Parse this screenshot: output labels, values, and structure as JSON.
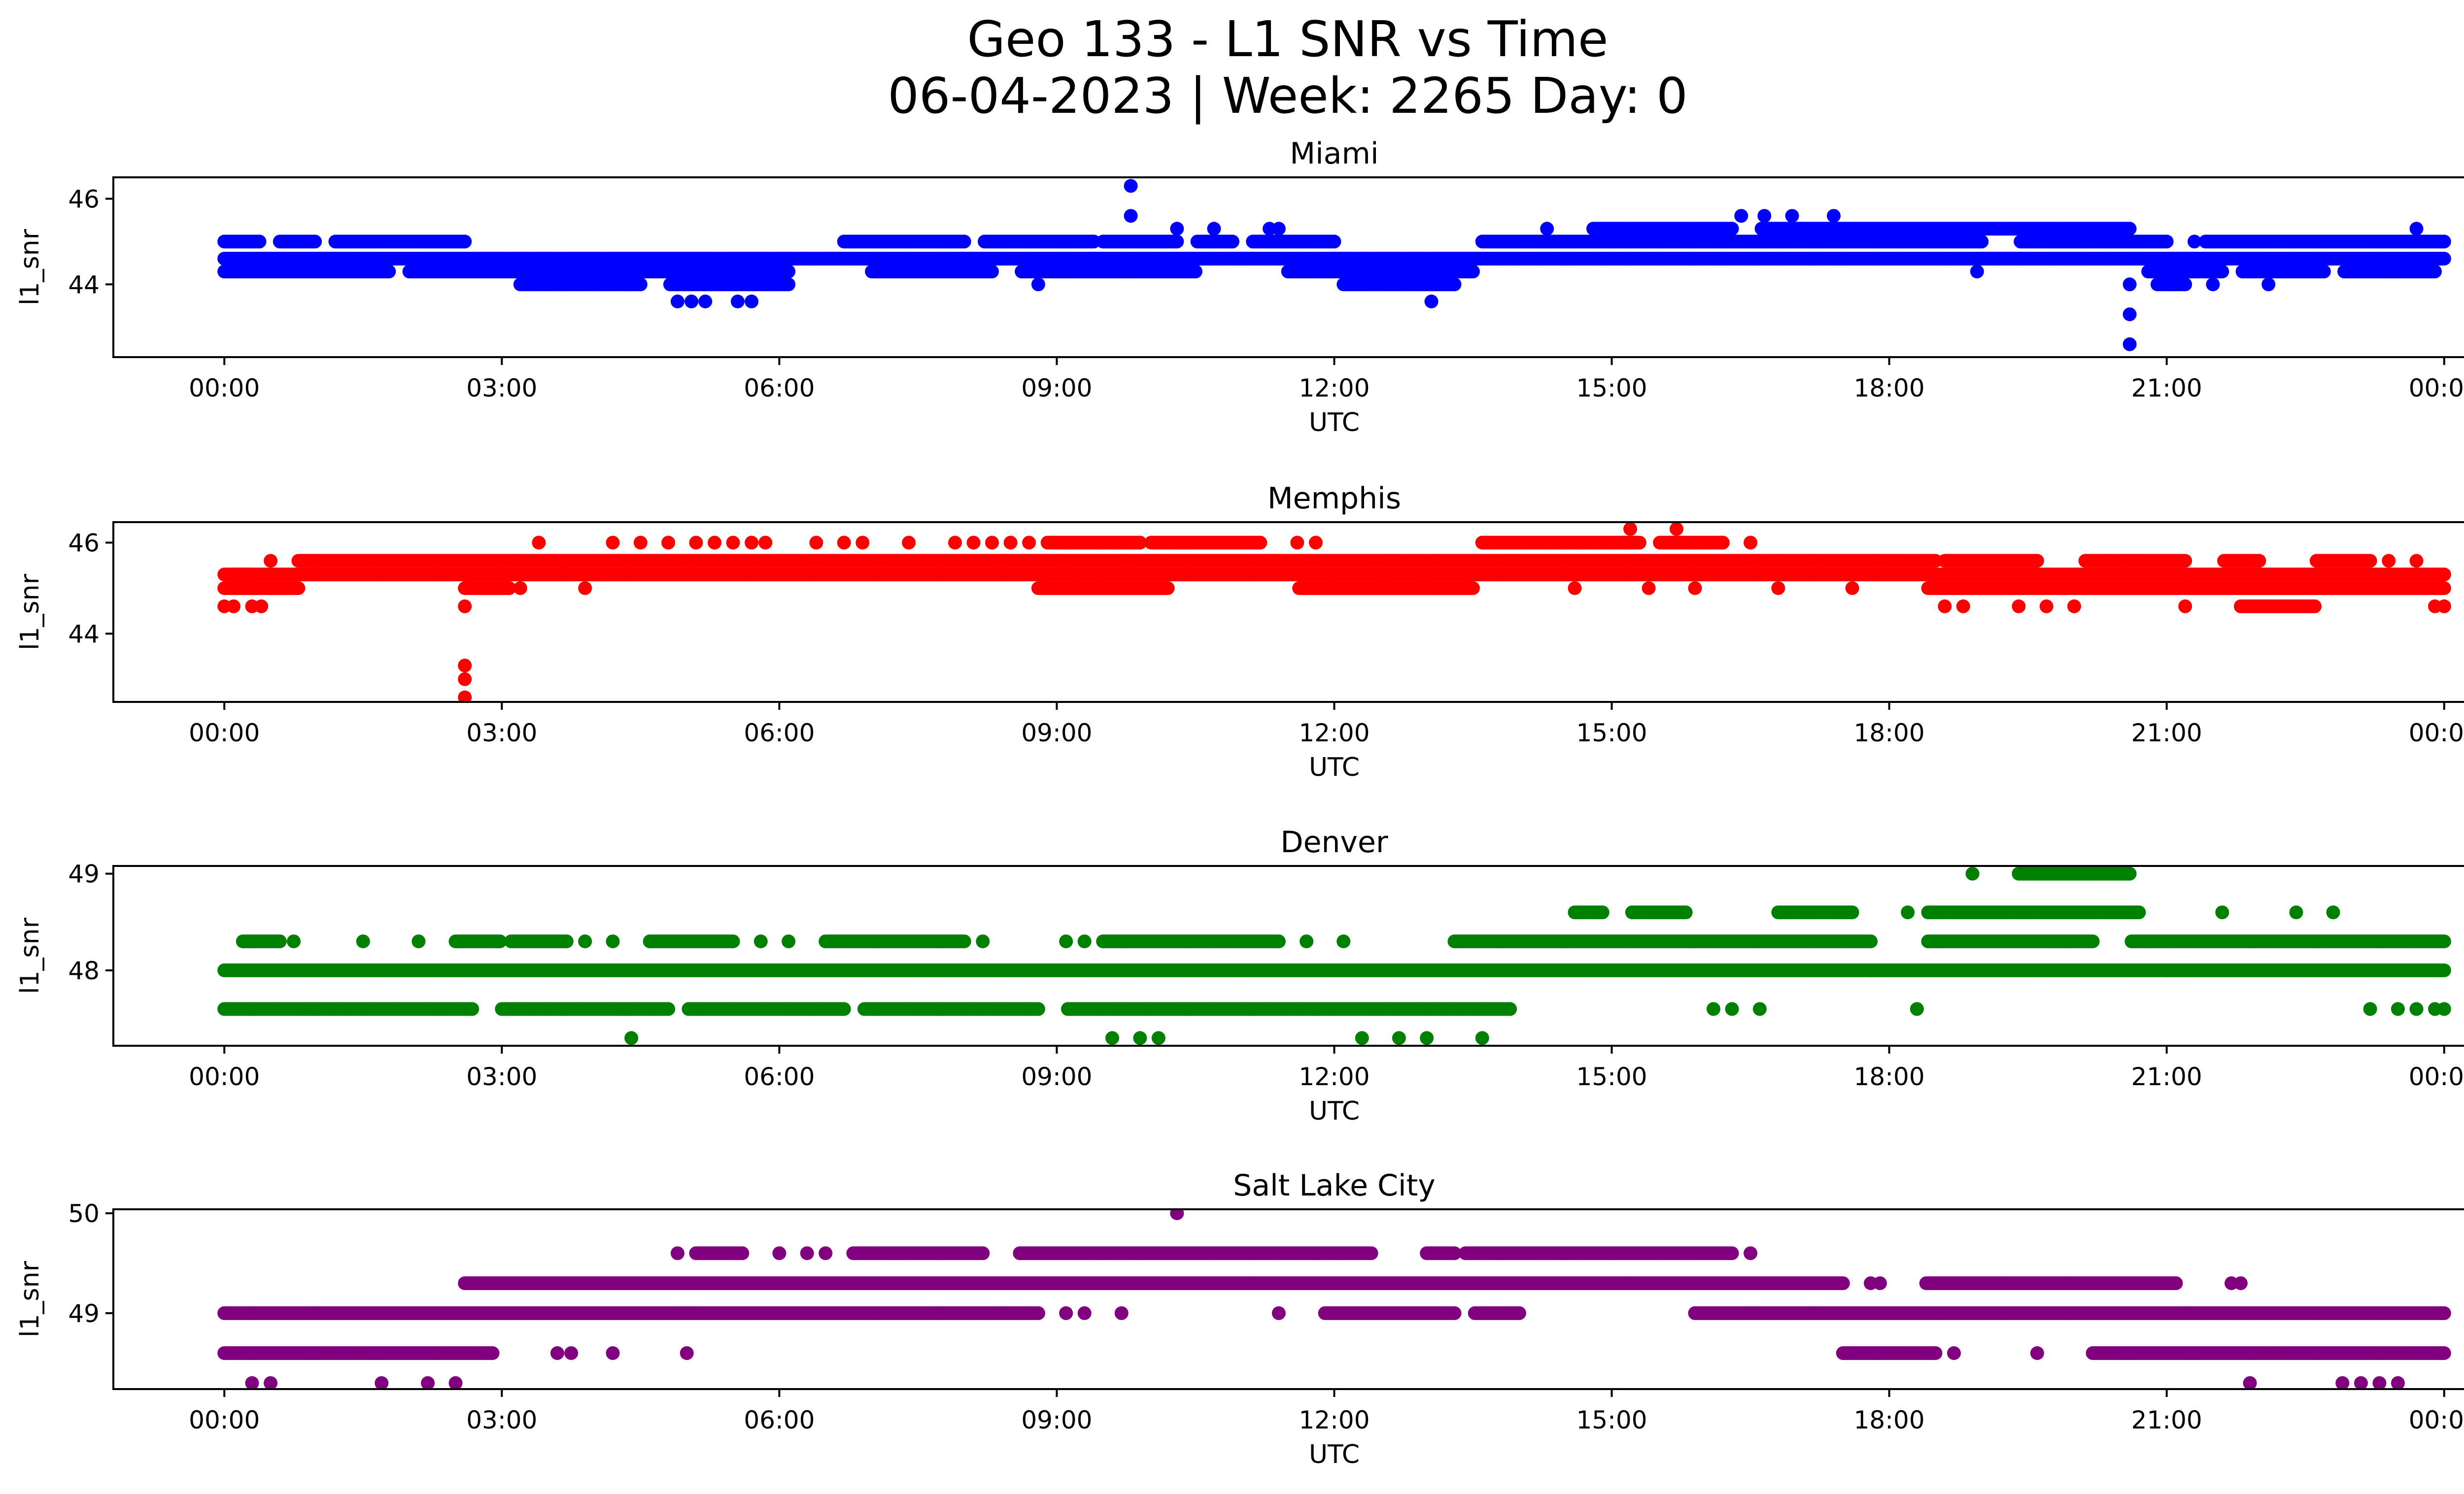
{
  "figure": {
    "title_line1": "Geo 133 - L1 SNR vs Time",
    "title_line2": "06-04-2023 | Week: 2265 Day: 0"
  },
  "chart_data": [
    {
      "type": "scatter",
      "title": "Miami",
      "color": "#0000ff",
      "xlabel": "UTC",
      "ylabel": "l1_snr",
      "x_unit": "hours UTC",
      "xlim": [
        -1.2,
        25.2
      ],
      "x_ticks": [
        0,
        3,
        6,
        9,
        12,
        15,
        18,
        21,
        24
      ],
      "x_tick_labels": [
        "00:00",
        "03:00",
        "06:00",
        "09:00",
        "12:00",
        "15:00",
        "18:00",
        "21:00",
        "00:00"
      ],
      "ylim": [
        42.3,
        46.5
      ],
      "y_ticks": [
        44,
        46
      ],
      "y_tick_labels": [
        "44",
        "46"
      ],
      "grid": false,
      "levels": [
        44.0,
        44.3,
        44.6,
        45.0,
        45.3,
        45.6
      ],
      "bands": [
        {
          "y": 44.6,
          "x0": 0.0,
          "x1": 24.0,
          "gaps": []
        },
        {
          "y": 45.0,
          "x0": 0.0,
          "x1": 2.6,
          "gaps": [
            [
              0.4,
              0.6
            ],
            [
              1.0,
              1.2
            ]
          ]
        },
        {
          "y": 44.3,
          "x0": 0.0,
          "x1": 6.1,
          "gaps": [
            [
              1.8,
              2.0
            ]
          ]
        },
        {
          "y": 44.0,
          "x0": 3.2,
          "x1": 6.1,
          "gaps": [
            [
              4.5,
              4.8
            ]
          ]
        },
        {
          "y": 45.0,
          "x0": 6.7,
          "x1": 9.4,
          "gaps": [
            [
              8.0,
              8.2
            ]
          ]
        },
        {
          "y": 44.3,
          "x0": 7.0,
          "x1": 10.5,
          "gaps": [
            [
              8.3,
              8.6
            ]
          ]
        },
        {
          "y": 45.0,
          "x0": 9.5,
          "x1": 12.0,
          "gaps": [
            [
              10.3,
              10.5
            ],
            [
              10.9,
              11.1
            ]
          ]
        },
        {
          "y": 44.3,
          "x0": 11.5,
          "x1": 13.5,
          "gaps": []
        },
        {
          "y": 44.0,
          "x0": 12.1,
          "x1": 13.3,
          "gaps": []
        },
        {
          "y": 45.0,
          "x0": 13.6,
          "x1": 24.0,
          "gaps": [
            [
              19.0,
              19.4
            ],
            [
              21.0,
              21.4
            ]
          ]
        },
        {
          "y": 45.3,
          "x0": 14.8,
          "x1": 20.6,
          "gaps": [
            [
              16.3,
              16.6
            ]
          ]
        },
        {
          "y": 44.3,
          "x0": 20.8,
          "x1": 23.9,
          "gaps": [
            [
              21.6,
              21.8
            ],
            [
              22.7,
              22.9
            ]
          ]
        },
        {
          "y": 44.0,
          "x0": 20.9,
          "x1": 21.2,
          "gaps": []
        }
      ],
      "points": [
        [
          4.9,
          43.6
        ],
        [
          5.05,
          43.6
        ],
        [
          5.2,
          43.6
        ],
        [
          5.55,
          43.6
        ],
        [
          5.7,
          43.6
        ],
        [
          13.05,
          43.6
        ],
        [
          8.8,
          44.0
        ],
        [
          18.95,
          44.3
        ],
        [
          21.5,
          44.0
        ],
        [
          22.1,
          44.0
        ],
        [
          9.8,
          46.3
        ],
        [
          9.8,
          45.6
        ],
        [
          10.3,
          45.3
        ],
        [
          10.7,
          45.3
        ],
        [
          11.3,
          45.3
        ],
        [
          11.4,
          45.3
        ],
        [
          14.3,
          45.3
        ],
        [
          16.4,
          45.6
        ],
        [
          16.65,
          45.6
        ],
        [
          16.95,
          45.6
        ],
        [
          17.4,
          45.6
        ],
        [
          20.6,
          44.0
        ],
        [
          20.6,
          43.3
        ],
        [
          20.6,
          42.6
        ],
        [
          23.7,
          45.3
        ],
        [
          21.3,
          45.0
        ],
        [
          9.9,
          44.6
        ]
      ]
    },
    {
      "type": "scatter",
      "title": "Memphis",
      "color": "#ff0000",
      "xlabel": "UTC",
      "ylabel": "l1_snr",
      "x_unit": "hours UTC",
      "xlim": [
        -1.2,
        25.2
      ],
      "x_ticks": [
        0,
        3,
        6,
        9,
        12,
        15,
        18,
        21,
        24
      ],
      "x_tick_labels": [
        "00:00",
        "03:00",
        "06:00",
        "09:00",
        "12:00",
        "15:00",
        "18:00",
        "21:00",
        "00:00"
      ],
      "ylim": [
        42.5,
        46.45
      ],
      "y_ticks": [
        44,
        46
      ],
      "y_tick_labels": [
        "44",
        "46"
      ],
      "grid": false,
      "levels": [
        44.6,
        45.0,
        45.3,
        45.6,
        46.0
      ],
      "bands": [
        {
          "y": 45.3,
          "x0": 0.0,
          "x1": 24.0,
          "gaps": []
        },
        {
          "y": 45.0,
          "x0": 0.0,
          "x1": 0.8,
          "gaps": []
        },
        {
          "y": 45.6,
          "x0": 0.8,
          "x1": 18.5,
          "gaps": []
        },
        {
          "y": 45.0,
          "x0": 2.6,
          "x1": 24.0,
          "gaps": [
            [
              3.1,
              8.8
            ],
            [
              10.2,
              11.6
            ],
            [
              13.5,
              18.4
            ]
          ]
        },
        {
          "y": 46.0,
          "x0": 8.9,
          "x1": 11.2,
          "gaps": [
            [
              9.9,
              10.0
            ]
          ]
        },
        {
          "y": 46.0,
          "x0": 13.6,
          "x1": 16.2,
          "gaps": [
            [
              15.3,
              15.5
            ]
          ]
        },
        {
          "y": 45.6,
          "x0": 18.6,
          "x1": 23.2,
          "gaps": [
            [
              19.6,
              20.1
            ],
            [
              21.2,
              21.6
            ],
            [
              22.0,
              22.6
            ]
          ]
        },
        {
          "y": 44.6,
          "x0": 21.8,
          "x1": 22.6,
          "gaps": []
        },
        {
          "y": 45.3,
          "x0": 0.1,
          "x1": 0.3,
          "gaps": []
        }
      ],
      "points": [
        [
          0.0,
          44.6
        ],
        [
          0.1,
          44.6
        ],
        [
          0.3,
          44.6
        ],
        [
          0.4,
          44.6
        ],
        [
          0.5,
          45.6
        ],
        [
          2.6,
          44.6
        ],
        [
          2.6,
          43.3
        ],
        [
          2.6,
          43.0
        ],
        [
          2.6,
          42.6
        ],
        [
          3.4,
          46.0
        ],
        [
          3.9,
          45.0
        ],
        [
          3.2,
          45.0
        ],
        [
          4.2,
          46.0
        ],
        [
          4.5,
          46.0
        ],
        [
          4.8,
          46.0
        ],
        [
          5.1,
          46.0
        ],
        [
          5.3,
          46.0
        ],
        [
          5.5,
          46.0
        ],
        [
          5.7,
          46.0
        ],
        [
          5.85,
          46.0
        ],
        [
          6.4,
          46.0
        ],
        [
          6.7,
          46.0
        ],
        [
          6.9,
          46.0
        ],
        [
          7.4,
          46.0
        ],
        [
          7.9,
          46.0
        ],
        [
          8.1,
          46.0
        ],
        [
          8.3,
          46.0
        ],
        [
          8.5,
          46.0
        ],
        [
          8.7,
          46.0
        ],
        [
          8.8,
          45.0
        ],
        [
          9.2,
          45.0
        ],
        [
          9.5,
          45.0
        ],
        [
          12.6,
          45.0
        ],
        [
          13.0,
          45.0
        ],
        [
          11.6,
          46.0
        ],
        [
          12.0,
          45.0
        ],
        [
          15.2,
          46.3
        ],
        [
          15.7,
          46.3
        ],
        [
          16.2,
          46.0
        ],
        [
          16.5,
          46.0
        ],
        [
          15.4,
          45.0
        ],
        [
          15.9,
          45.0
        ],
        [
          14.6,
          45.0
        ],
        [
          16.8,
          45.0
        ],
        [
          17.6,
          45.0
        ],
        [
          18.6,
          44.6
        ],
        [
          18.8,
          44.6
        ],
        [
          19.4,
          44.6
        ],
        [
          19.7,
          44.6
        ],
        [
          20.0,
          44.6
        ],
        [
          21.2,
          44.6
        ],
        [
          23.4,
          45.6
        ],
        [
          23.7,
          45.6
        ],
        [
          23.9,
          44.6
        ],
        [
          24.0,
          44.6
        ],
        [
          11.8,
          46.0
        ]
      ]
    },
    {
      "type": "scatter",
      "title": "Denver",
      "color": "#008000",
      "xlabel": "UTC",
      "ylabel": "l1_snr",
      "x_unit": "hours UTC",
      "xlim": [
        -1.2,
        25.2
      ],
      "x_ticks": [
        0,
        3,
        6,
        9,
        12,
        15,
        18,
        21,
        24
      ],
      "x_tick_labels": [
        "00:00",
        "03:00",
        "06:00",
        "09:00",
        "12:00",
        "15:00",
        "18:00",
        "21:00",
        "00:00"
      ],
      "ylim": [
        47.22,
        49.08
      ],
      "y_ticks": [
        48,
        49
      ],
      "y_tick_labels": [
        "48",
        "49"
      ],
      "grid": false,
      "levels": [
        47.3,
        47.6,
        48.0,
        48.3,
        48.6,
        49.0
      ],
      "bands": [
        {
          "y": 48.0,
          "x0": 0.0,
          "x1": 24.0,
          "gaps": []
        },
        {
          "y": 47.6,
          "x0": 0.0,
          "x1": 13.9,
          "gaps": [
            [
              2.7,
              3.0
            ],
            [
              4.8,
              5.0
            ],
            [
              6.7,
              6.9
            ],
            [
              8.8,
              9.1
            ]
          ]
        },
        {
          "y": 48.3,
          "x0": 0.2,
          "x1": 0.6,
          "gaps": []
        },
        {
          "y": 48.3,
          "x0": 2.5,
          "x1": 3.7,
          "gaps": [
            [
              3.0,
              3.1
            ]
          ]
        },
        {
          "y": 48.3,
          "x0": 4.6,
          "x1": 5.5,
          "gaps": []
        },
        {
          "y": 48.3,
          "x0": 6.5,
          "x1": 8.0,
          "gaps": []
        },
        {
          "y": 48.3,
          "x0": 9.5,
          "x1": 11.4,
          "gaps": []
        },
        {
          "y": 48.3,
          "x0": 13.3,
          "x1": 24.0,
          "gaps": [
            [
              17.8,
              18.4
            ],
            [
              20.2,
              20.6
            ]
          ]
        },
        {
          "y": 48.6,
          "x0": 16.8,
          "x1": 20.7,
          "gaps": [
            [
              17.6,
              18.4
            ]
          ]
        },
        {
          "y": 48.6,
          "x0": 14.6,
          "x1": 15.8,
          "gaps": [
            [
              14.9,
              15.2
            ]
          ]
        },
        {
          "y": 49.0,
          "x0": 19.4,
          "x1": 20.6,
          "gaps": []
        }
      ],
      "points": [
        [
          0.75,
          48.3
        ],
        [
          1.5,
          48.3
        ],
        [
          2.1,
          48.3
        ],
        [
          3.9,
          48.3
        ],
        [
          4.2,
          48.3
        ],
        [
          5.8,
          48.3
        ],
        [
          6.1,
          48.3
        ],
        [
          8.2,
          48.3
        ],
        [
          9.1,
          48.3
        ],
        [
          9.3,
          48.3
        ],
        [
          11.7,
          48.3
        ],
        [
          12.1,
          48.3
        ],
        [
          4.4,
          47.3
        ],
        [
          9.6,
          47.3
        ],
        [
          9.9,
          47.3
        ],
        [
          10.1,
          47.3
        ],
        [
          12.3,
          47.3
        ],
        [
          12.7,
          47.3
        ],
        [
          13.0,
          47.3
        ],
        [
          13.6,
          47.3
        ],
        [
          16.1,
          47.6
        ],
        [
          16.3,
          47.6
        ],
        [
          16.6,
          47.6
        ],
        [
          18.3,
          47.6
        ],
        [
          18.9,
          49.0
        ],
        [
          23.2,
          47.6
        ],
        [
          23.5,
          47.6
        ],
        [
          23.7,
          47.6
        ],
        [
          23.9,
          47.6
        ],
        [
          24.0,
          47.6
        ],
        [
          21.6,
          48.6
        ],
        [
          22.4,
          48.6
        ],
        [
          22.8,
          48.6
        ],
        [
          18.2,
          48.6
        ],
        [
          17.8,
          48.0
        ],
        [
          18.5,
          48.0
        ],
        [
          21.0,
          48.0
        ],
        [
          21.3,
          48.0
        ],
        [
          19.8,
          48.3
        ],
        [
          20.8,
          48.3
        ]
      ]
    },
    {
      "type": "scatter",
      "title": "Salt Lake City",
      "color": "#800080",
      "xlabel": "UTC",
      "ylabel": "l1_snr",
      "x_unit": "hours UTC",
      "xlim": [
        -1.2,
        25.2
      ],
      "x_ticks": [
        0,
        3,
        6,
        9,
        12,
        15,
        18,
        21,
        24
      ],
      "x_tick_labels": [
        "00:00",
        "03:00",
        "06:00",
        "09:00",
        "12:00",
        "15:00",
        "18:00",
        "21:00",
        "00:00"
      ],
      "ylim": [
        48.24,
        50.04
      ],
      "y_ticks": [
        49,
        50
      ],
      "y_tick_labels": [
        "49",
        "50"
      ],
      "grid": false,
      "levels": [
        48.3,
        48.6,
        49.0,
        49.3,
        49.6,
        50.0
      ],
      "bands": [
        {
          "y": 49.0,
          "x0": 0.0,
          "x1": 8.8,
          "gaps": []
        },
        {
          "y": 48.6,
          "x0": 0.0,
          "x1": 2.9,
          "gaps": []
        },
        {
          "y": 49.3,
          "x0": 2.6,
          "x1": 17.5,
          "gaps": []
        },
        {
          "y": 49.6,
          "x0": 5.1,
          "x1": 5.6,
          "gaps": []
        },
        {
          "y": 49.6,
          "x0": 6.8,
          "x1": 8.2,
          "gaps": []
        },
        {
          "y": 49.6,
          "x0": 8.6,
          "x1": 12.4,
          "gaps": []
        },
        {
          "y": 49.6,
          "x0": 13.0,
          "x1": 16.3,
          "gaps": [
            [
              13.3,
              13.4
            ]
          ]
        },
        {
          "y": 49.0,
          "x0": 11.9,
          "x1": 14.0,
          "gaps": [
            [
              13.3,
              13.5
            ]
          ]
        },
        {
          "y": 49.0,
          "x0": 15.9,
          "x1": 24.0,
          "gaps": []
        },
        {
          "y": 48.6,
          "x0": 17.5,
          "x1": 18.5,
          "gaps": []
        },
        {
          "y": 49.3,
          "x0": 18.4,
          "x1": 21.1,
          "gaps": []
        },
        {
          "y": 48.6,
          "x0": 20.2,
          "x1": 24.0,
          "gaps": []
        }
      ],
      "points": [
        [
          0.3,
          48.3
        ],
        [
          0.5,
          48.3
        ],
        [
          1.7,
          48.3
        ],
        [
          2.2,
          48.3
        ],
        [
          2.5,
          48.3
        ],
        [
          3.6,
          48.6
        ],
        [
          3.75,
          48.6
        ],
        [
          4.2,
          48.6
        ],
        [
          5.0,
          48.6
        ],
        [
          4.9,
          49.6
        ],
        [
          6.0,
          49.6
        ],
        [
          6.3,
          49.6
        ],
        [
          6.5,
          49.6
        ],
        [
          9.1,
          49.0
        ],
        [
          9.3,
          49.0
        ],
        [
          9.7,
          49.0
        ],
        [
          11.4,
          49.0
        ],
        [
          10.3,
          50.0
        ],
        [
          16.5,
          49.6
        ],
        [
          17.8,
          49.3
        ],
        [
          17.9,
          49.3
        ],
        [
          19.6,
          48.6
        ],
        [
          19.9,
          49.3
        ],
        [
          20.6,
          49.3
        ],
        [
          21.9,
          48.3
        ],
        [
          21.7,
          49.3
        ],
        [
          21.8,
          49.3
        ],
        [
          22.9,
          48.3
        ],
        [
          23.1,
          48.3
        ],
        [
          23.3,
          48.3
        ],
        [
          23.5,
          48.3
        ],
        [
          18.7,
          48.6
        ]
      ]
    }
  ]
}
